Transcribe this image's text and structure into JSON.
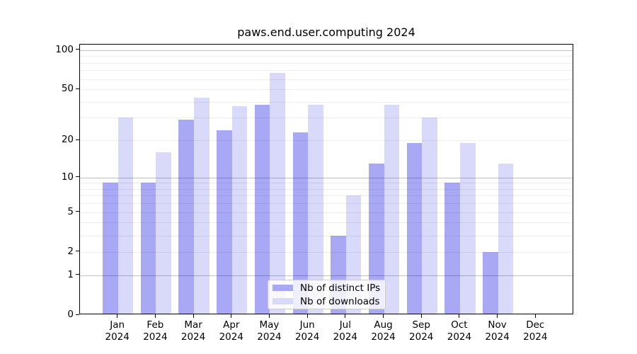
{
  "title": "paws.end.user.computing 2024",
  "legend": {
    "items": [
      {
        "label": "Nb of distinct IPs",
        "color": "#a8a8f4"
      },
      {
        "label": "Nb of downloads",
        "color": "#d9d9f9"
      }
    ]
  },
  "colors": {
    "bar_distinct_ips": "#a8a8f4",
    "bar_downloads": "#d9d9f9",
    "grid_minor": "rgba(0,0,0,0.065)",
    "grid_major": "rgba(0,0,0,0.24)",
    "spine": "#000000",
    "background": "#ffffff"
  },
  "chart_data": {
    "type": "bar",
    "title": "paws.end.user.computing 2024",
    "x": [
      "Jan 2024",
      "Feb 2024",
      "Mar 2024",
      "Apr 2024",
      "May 2024",
      "Jun 2024",
      "Jul 2024",
      "Aug 2024",
      "Sep 2024",
      "Oct 2024",
      "Nov 2024",
      "Dec 2024"
    ],
    "months": [
      "Jan",
      "Feb",
      "Mar",
      "Apr",
      "May",
      "Jun",
      "Jul",
      "Aug",
      "Sep",
      "Oct",
      "Nov",
      "Dec"
    ],
    "year": "2024",
    "series": [
      {
        "name": "Nb of distinct IPs",
        "color": "#a8a8f4",
        "values": [
          9,
          9,
          29,
          24,
          38,
          23,
          3,
          13,
          19,
          9,
          2,
          0
        ]
      },
      {
        "name": "Nb of downloads",
        "color": "#d9d9f9",
        "values": [
          30,
          16,
          43,
          37,
          67,
          38,
          7,
          38,
          30,
          19,
          13,
          0
        ]
      }
    ],
    "xlabel": "",
    "ylabel": "",
    "y_scale": "log1p",
    "ylim": [
      0,
      110
    ],
    "y_ticks": [
      0,
      1,
      2,
      5,
      10,
      20,
      50,
      100
    ],
    "grid_minor_values": [
      2,
      3,
      4,
      5,
      6,
      7,
      8,
      9,
      20,
      30,
      40,
      50,
      60,
      70,
      80,
      90
    ],
    "grid_major_values": [
      1,
      10,
      100
    ],
    "grid": true,
    "grid_above_bars": true,
    "legend_position": "lower-center"
  }
}
